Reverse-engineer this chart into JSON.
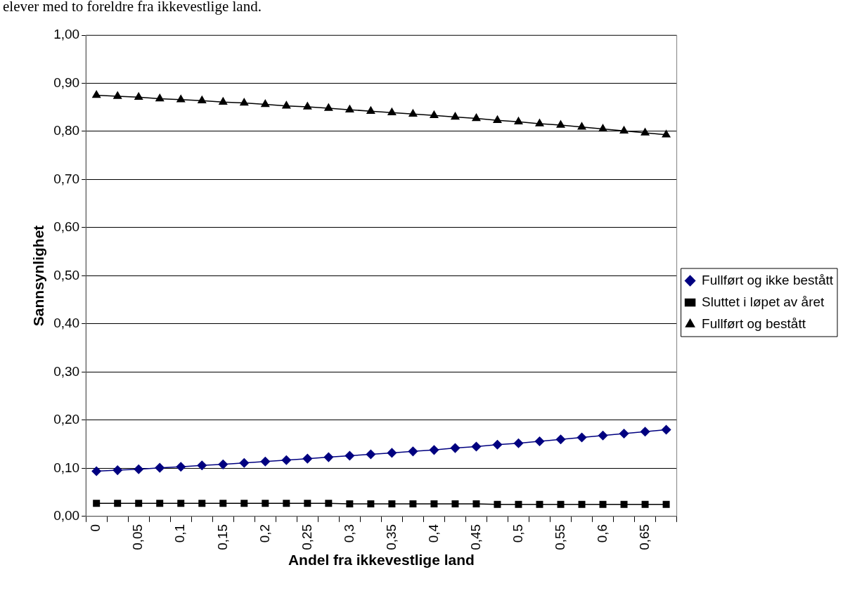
{
  "chart_data": {
    "type": "line",
    "annotations": [
      "elever med to foreldre fra ikkevestlige land."
    ],
    "xlabel": "Andel fra ikkevestlige land",
    "ylabel": "Sannsynlighet",
    "categories": [
      "0",
      null,
      "0,05",
      null,
      "0,1",
      null,
      "0,15",
      null,
      "0,2",
      null,
      "0,25",
      null,
      "0,3",
      null,
      "0,35",
      null,
      "0,4",
      null,
      "0,45",
      null,
      "0,5",
      null,
      "0,55",
      null,
      "0,6",
      null,
      "0,65",
      null
    ],
    "series": [
      {
        "name": "Fullført og ikke bestått",
        "color": "#000080",
        "marker": "diamond",
        "values": [
          0.094,
          0.096,
          0.098,
          0.101,
          0.103,
          0.106,
          0.108,
          0.111,
          0.114,
          0.117,
          0.12,
          0.123,
          0.126,
          0.129,
          0.132,
          0.135,
          0.138,
          0.142,
          0.145,
          0.149,
          0.152,
          0.156,
          0.16,
          0.164,
          0.168,
          0.172,
          0.176,
          0.18
        ]
      },
      {
        "name": "Sluttet i løpet av året",
        "color": "#000000",
        "marker": "square",
        "values": [
          0.027,
          0.027,
          0.027,
          0.027,
          0.027,
          0.027,
          0.027,
          0.027,
          0.027,
          0.027,
          0.027,
          0.027,
          0.026,
          0.026,
          0.026,
          0.026,
          0.026,
          0.026,
          0.026,
          0.025,
          0.025,
          0.025,
          0.025,
          0.025,
          0.025,
          0.025,
          0.025,
          0.025
        ]
      },
      {
        "name": "Fullført og bestått",
        "color": "#000000",
        "marker": "triangle",
        "values": [
          0.875,
          0.873,
          0.871,
          0.868,
          0.866,
          0.864,
          0.861,
          0.859,
          0.856,
          0.853,
          0.851,
          0.848,
          0.845,
          0.842,
          0.839,
          0.836,
          0.833,
          0.83,
          0.827,
          0.823,
          0.82,
          0.816,
          0.813,
          0.809,
          0.805,
          0.801,
          0.797,
          0.793
        ]
      }
    ],
    "ylim": [
      0,
      1
    ],
    "yticks": [
      {
        "value": 0,
        "label": "0,00"
      },
      {
        "value": 0.1,
        "label": "0,10"
      },
      {
        "value": 0.2,
        "label": "0,20"
      },
      {
        "value": 0.3,
        "label": "0,30"
      },
      {
        "value": 0.4,
        "label": "0,40"
      },
      {
        "value": 0.5,
        "label": "0,50"
      },
      {
        "value": 0.6,
        "label": "0,60"
      },
      {
        "value": 0.7,
        "label": "0,70"
      },
      {
        "value": 0.8,
        "label": "0,80"
      },
      {
        "value": 0.9,
        "label": "0,90"
      },
      {
        "value": 1,
        "label": "1,00"
      }
    ],
    "grid": "y",
    "legend": "right",
    "line_style": "solid"
  }
}
